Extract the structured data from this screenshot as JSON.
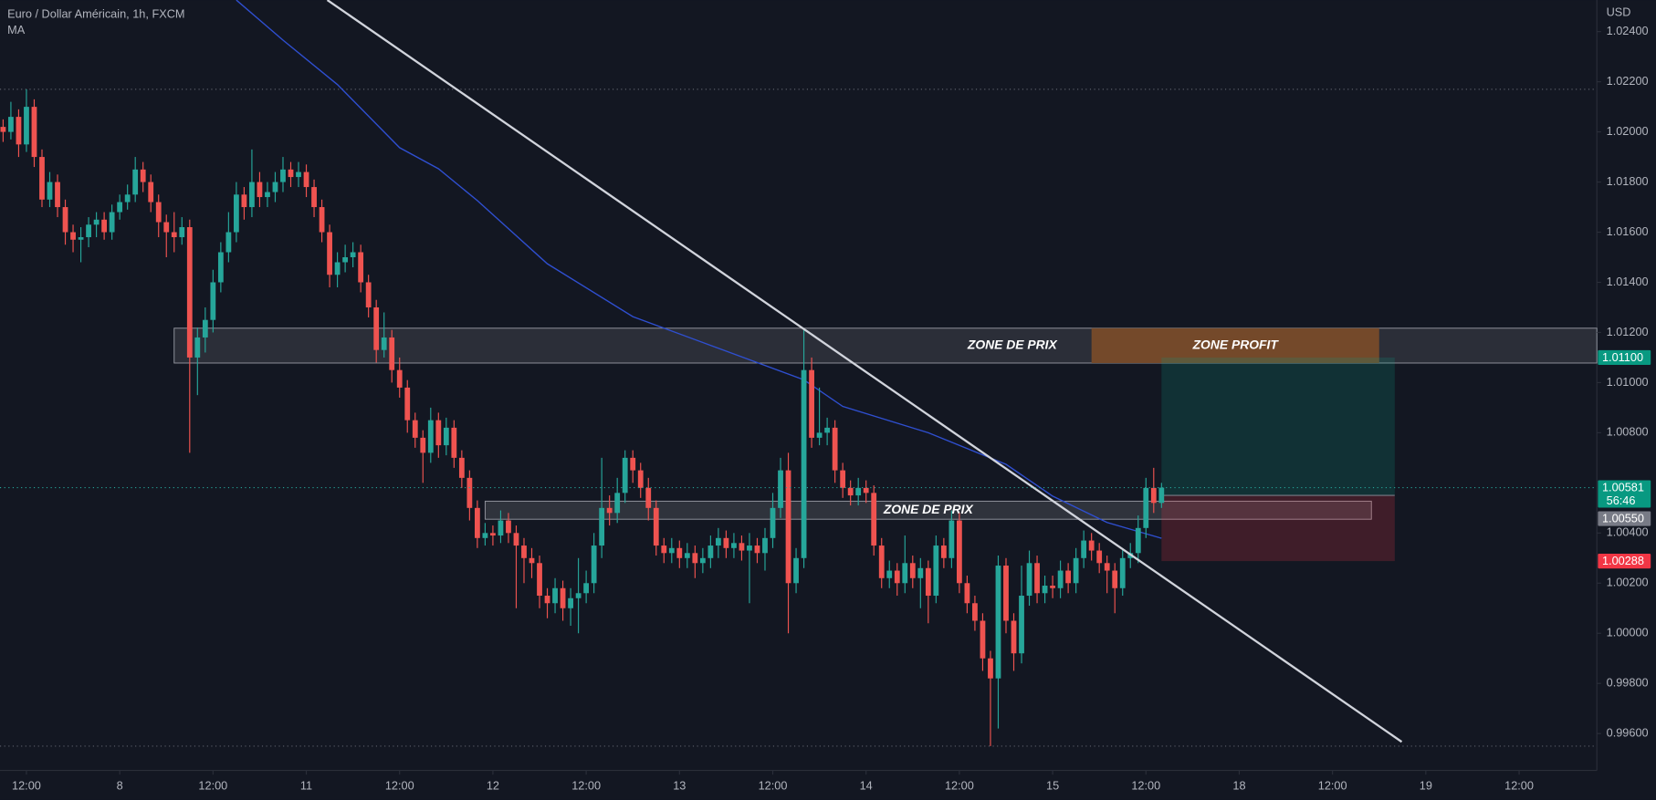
{
  "chart_data": {
    "type": "candlestick",
    "title": "Euro / Dollar Américain, 1h, FXCM",
    "currency": "USD",
    "up_color": "#26a69a",
    "down_color": "#ef5350",
    "open": [
      1.0202,
      1.02,
      1.0206,
      1.0195,
      1.021,
      1.019,
      1.0173,
      1.018,
      1.017,
      1.016,
      1.0157,
      1.0158,
      1.0163,
      1.0165,
      1.016,
      1.0168,
      1.0172,
      1.0175,
      1.0185,
      1.018,
      1.0172,
      1.0164,
      1.016,
      1.0158,
      1.0162,
      1.011,
      1.0118,
      1.0125,
      1.014,
      1.0152,
      1.016,
      1.0175,
      1.017,
      1.018,
      1.0174,
      1.0176,
      1.018,
      1.0185,
      1.0182,
      1.0184,
      1.0178,
      1.017,
      1.016,
      1.0143,
      1.0148,
      1.015,
      1.0152,
      1.014,
      1.013,
      1.0113,
      1.0118,
      1.0105,
      1.0098,
      1.0085,
      1.0078,
      1.0072,
      1.0085,
      1.0075,
      1.0082,
      1.007,
      1.0062,
      1.005,
      1.0038,
      1.004,
      1.0039,
      1.0045,
      1.004,
      1.0035,
      1.003,
      1.0028,
      1.0015,
      1.0012,
      1.0018,
      1.001,
      1.0014,
      1.0016,
      1.002,
      1.0035,
      1.005,
      1.0048,
      1.0056,
      1.007,
      1.0065,
      1.0058,
      1.005,
      1.0035,
      1.0032,
      1.0034,
      1.003,
      1.0032,
      1.0028,
      1.003,
      1.0035,
      1.0038,
      1.0034,
      1.0036,
      1.0033,
      1.0035,
      1.0032,
      1.0038,
      1.005,
      1.0065,
      1.002,
      1.003,
      1.0105,
      1.0078,
      1.008,
      1.0082,
      1.0065,
      1.0058,
      1.0055,
      1.0058,
      1.0056,
      1.0035,
      1.0022,
      1.0025,
      1.002,
      1.0028,
      1.0022,
      1.0026,
      1.0015,
      1.0035,
      1.003,
      1.0045,
      1.002,
      1.0012,
      1.0005,
      0.999,
      0.9982,
      1.0027,
      1.0005,
      0.9992,
      1.0015,
      1.0028,
      1.0016,
      1.0019,
      1.0018,
      1.0025,
      1.002,
      1.003,
      1.0037,
      1.0033,
      1.0028,
      1.0025,
      1.0018,
      1.003,
      1.0032,
      1.0042,
      1.0058,
      1.0052
    ],
    "high": [
      1.0205,
      1.0212,
      1.0209,
      1.0217,
      1.0213,
      1.0193,
      1.0184,
      1.0183,
      1.0173,
      1.0163,
      1.0162,
      1.0166,
      1.0168,
      1.0168,
      1.0171,
      1.0175,
      1.0179,
      1.019,
      1.0188,
      1.0183,
      1.0175,
      1.0167,
      1.0168,
      1.0166,
      1.0165,
      1.0122,
      1.013,
      1.0145,
      1.0156,
      1.0168,
      1.018,
      1.0178,
      1.0193,
      1.0184,
      1.018,
      1.0184,
      1.019,
      1.0188,
      1.0188,
      1.0187,
      1.0181,
      1.0173,
      1.0163,
      1.0152,
      1.0155,
      1.0156,
      1.0155,
      1.0143,
      1.0133,
      1.0128,
      1.0121,
      1.011,
      1.0101,
      1.0088,
      1.0081,
      1.009,
      1.0088,
      1.0086,
      1.0085,
      1.0073,
      1.0065,
      1.0053,
      1.0044,
      1.0043,
      1.0049,
      1.0048,
      1.0043,
      1.0038,
      1.0034,
      1.0031,
      1.0018,
      1.0022,
      1.0021,
      1.0018,
      1.003,
      1.0025,
      1.004,
      1.007,
      1.0055,
      1.0062,
      1.0073,
      1.0073,
      1.0068,
      1.0062,
      1.0053,
      1.0038,
      1.0038,
      1.0037,
      1.0036,
      1.0035,
      1.0034,
      1.0039,
      1.0042,
      1.0041,
      1.004,
      1.0039,
      1.004,
      1.0038,
      1.0042,
      1.0056,
      1.007,
      1.0072,
      1.0034,
      1.0121,
      1.011,
      1.0098,
      1.0086,
      1.0085,
      1.0068,
      1.0061,
      1.0062,
      1.0061,
      1.0059,
      1.0038,
      1.0029,
      1.0028,
      1.0039,
      1.0031,
      1.003,
      1.0029,
      1.0039,
      1.0038,
      1.0049,
      1.0048,
      1.0023,
      1.0015,
      1.0008,
      0.9993,
      1.0031,
      1.003,
      1.0008,
      1.0027,
      1.0033,
      1.0031,
      1.0023,
      1.0023,
      1.0029,
      1.0028,
      1.0034,
      1.0041,
      1.004,
      1.0036,
      1.0031,
      1.0028,
      1.0034,
      1.0036,
      1.0047,
      1.0062,
      1.0066,
      1.006
    ],
    "low": [
      1.0196,
      1.0197,
      1.019,
      1.0192,
      1.0186,
      1.017,
      1.017,
      1.0166,
      1.0155,
      1.0152,
      1.0148,
      1.0154,
      1.0158,
      1.0157,
      1.0157,
      1.0165,
      1.0169,
      1.0172,
      1.0176,
      1.0168,
      1.0158,
      1.015,
      1.0152,
      1.0155,
      1.0072,
      1.0095,
      1.0112,
      1.012,
      1.0136,
      1.0148,
      1.0156,
      1.0165,
      1.0166,
      1.017,
      1.017,
      1.0172,
      1.0176,
      1.0178,
      1.0178,
      1.0174,
      1.0166,
      1.0156,
      1.0138,
      1.0138,
      1.0144,
      1.0146,
      1.0136,
      1.0126,
      1.0108,
      1.011,
      1.01,
      1.0094,
      1.008,
      1.0074,
      1.006,
      1.0068,
      1.007,
      1.0071,
      1.0066,
      1.0058,
      1.0045,
      1.0034,
      1.0035,
      1.0035,
      1.0036,
      1.0036,
      1.001,
      1.002,
      1.0022,
      1.001,
      1.0006,
      1.0008,
      1.0005,
      1.0003,
      1.0,
      1.0012,
      1.0016,
      1.003,
      1.0043,
      1.0044,
      1.0052,
      1.006,
      1.0054,
      1.0045,
      1.0031,
      1.0028,
      1.0028,
      1.0026,
      1.0026,
      1.0022,
      1.0024,
      1.0026,
      1.003,
      1.003,
      1.003,
      1.0029,
      1.0012,
      1.0028,
      1.0025,
      1.0034,
      1.0046,
      1.0,
      1.0016,
      1.0026,
      1.0074,
      1.0075,
      1.0075,
      1.006,
      1.0054,
      1.0051,
      1.0051,
      1.0052,
      1.0031,
      1.0018,
      1.0018,
      1.0015,
      1.0016,
      1.0018,
      1.001,
      1.0004,
      1.0012,
      1.0026,
      1.0026,
      1.0016,
      1.0008,
      1.0001,
      0.9985,
      0.9955,
      0.9962,
      1.0,
      0.9985,
      0.9988,
      1.0011,
      1.0012,
      1.0012,
      1.0014,
      1.0014,
      1.0016,
      1.0016,
      1.0026,
      1.0029,
      1.0024,
      1.0016,
      1.0008,
      1.0015,
      1.0026,
      1.0028,
      1.0038,
      1.0048,
      1.005
    ],
    "close": [
      1.02,
      1.0206,
      1.0195,
      1.021,
      1.019,
      1.0173,
      1.018,
      1.017,
      1.016,
      1.0157,
      1.0158,
      1.0163,
      1.0165,
      1.016,
      1.0168,
      1.0172,
      1.0175,
      1.0185,
      1.018,
      1.0172,
      1.0164,
      1.016,
      1.0158,
      1.0162,
      1.011,
      1.0118,
      1.0125,
      1.014,
      1.0152,
      1.016,
      1.0175,
      1.017,
      1.018,
      1.0174,
      1.0176,
      1.018,
      1.0185,
      1.0182,
      1.0184,
      1.0178,
      1.017,
      1.016,
      1.0143,
      1.0148,
      1.015,
      1.0152,
      1.014,
      1.013,
      1.0113,
      1.0118,
      1.0105,
      1.0098,
      1.0085,
      1.0078,
      1.0072,
      1.0085,
      1.0075,
      1.0082,
      1.007,
      1.0062,
      1.005,
      1.0038,
      1.004,
      1.0039,
      1.0045,
      1.004,
      1.0035,
      1.003,
      1.0028,
      1.0015,
      1.0012,
      1.0018,
      1.001,
      1.0014,
      1.0016,
      1.002,
      1.0035,
      1.005,
      1.0048,
      1.0056,
      1.007,
      1.0065,
      1.0058,
      1.005,
      1.0035,
      1.0032,
      1.0034,
      1.003,
      1.0032,
      1.0028,
      1.003,
      1.0035,
      1.0038,
      1.0034,
      1.0036,
      1.0033,
      1.0035,
      1.0032,
      1.0038,
      1.005,
      1.0065,
      1.002,
      1.003,
      1.0105,
      1.0078,
      1.008,
      1.0082,
      1.0065,
      1.0058,
      1.0055,
      1.0058,
      1.0056,
      1.0035,
      1.0022,
      1.0025,
      1.002,
      1.0028,
      1.0022,
      1.0026,
      1.0015,
      1.0035,
      1.003,
      1.0045,
      1.002,
      1.0012,
      1.0005,
      0.999,
      0.9982,
      1.0027,
      1.0005,
      0.9992,
      1.0015,
      1.0028,
      1.0016,
      1.0019,
      1.0018,
      1.0025,
      1.002,
      1.003,
      1.0037,
      1.0033,
      1.0028,
      1.0025,
      1.0018,
      1.003,
      1.0032,
      1.0042,
      1.0058,
      1.0052,
      1.00581
    ],
    "countdown": "56:46",
    "ma": {
      "name": "MA",
      "color": "#2f4fd0",
      "x": [
        30,
        36,
        43,
        47,
        51,
        56,
        61,
        70,
        81,
        92,
        103,
        108,
        119,
        129,
        135,
        142,
        149
      ],
      "values": [
        1.02526,
        1.02366,
        1.02189,
        1.02063,
        1.01937,
        1.01853,
        1.01726,
        1.01474,
        1.01263,
        1.01137,
        1.01011,
        1.00905,
        1.008,
        1.00674,
        1.00547,
        1.00442,
        1.00379
      ]
    },
    "trendline": [
      [
        41.7,
        1.02526
      ],
      [
        179.9,
        0.99567
      ]
    ],
    "zones": [
      {
        "label": "ZONE DE PRIX",
        "top": 1.01217,
        "bottom": 1.01078,
        "x": [
          22,
          205
        ],
        "color": "rgba(255,255,255,0.1)"
      },
      {
        "label": "ZONE PROFIT",
        "top": 1.01217,
        "bottom": 1.01078,
        "x": [
          140,
          177
        ],
        "color": "#74492a"
      },
      {
        "label": "ZONE DE PRIX",
        "top": 1.00527,
        "bottom": 1.00455,
        "x": [
          62,
          176
        ],
        "color": "rgba(255,255,255,0.12)"
      }
    ],
    "position": {
      "entry": {
        "value": 1.0055,
        "label": "1.00550"
      },
      "target": {
        "value": 1.011,
        "label": "1.01100"
      },
      "stop": 1.00288,
      "x": [
        149,
        179
      ]
    },
    "xlim": [
      -0.4,
      205
    ],
    "xticks": [
      {
        "value": 3,
        "label": "12:00"
      },
      {
        "value": 15,
        "label": "8"
      },
      {
        "value": 27,
        "label": "12:00"
      },
      {
        "value": 39,
        "label": "11"
      },
      {
        "value": 51,
        "label": "12:00"
      },
      {
        "value": 63,
        "label": "12"
      },
      {
        "value": 75,
        "label": "12:00"
      },
      {
        "value": 87,
        "label": "13"
      },
      {
        "value": 99,
        "label": "12:00"
      },
      {
        "value": 111,
        "label": "14"
      },
      {
        "value": 123,
        "label": "12:00"
      },
      {
        "value": 135,
        "label": "15"
      },
      {
        "value": 147,
        "label": "12:00"
      },
      {
        "value": 159,
        "label": "18"
      },
      {
        "value": 171,
        "label": "12:00"
      },
      {
        "value": 183,
        "label": "19"
      },
      {
        "value": 195,
        "label": "12:00"
      }
    ],
    "ylim": [
      0.99453,
      1.02526
    ],
    "yticks": [
      {
        "value": 0.996,
        "label": "0.99600"
      },
      {
        "value": 0.998,
        "label": "0.99800"
      },
      {
        "value": 1.0,
        "label": "1.00000"
      },
      {
        "value": 1.002,
        "label": "1.00200"
      },
      {
        "value": 1.004,
        "label": "1.00400"
      },
      {
        "value": 1.008,
        "label": "1.00800"
      },
      {
        "value": 1.01,
        "label": "1.01000"
      },
      {
        "value": 1.012,
        "label": "1.01200"
      },
      {
        "value": 1.014,
        "label": "1.01400"
      },
      {
        "value": 1.016,
        "label": "1.01600"
      },
      {
        "value": 1.018,
        "label": "1.01800"
      },
      {
        "value": 1.02,
        "label": "1.02000"
      },
      {
        "value": 1.022,
        "label": "1.02200"
      },
      {
        "value": 1.024,
        "label": "1.02400"
      }
    ]
  }
}
